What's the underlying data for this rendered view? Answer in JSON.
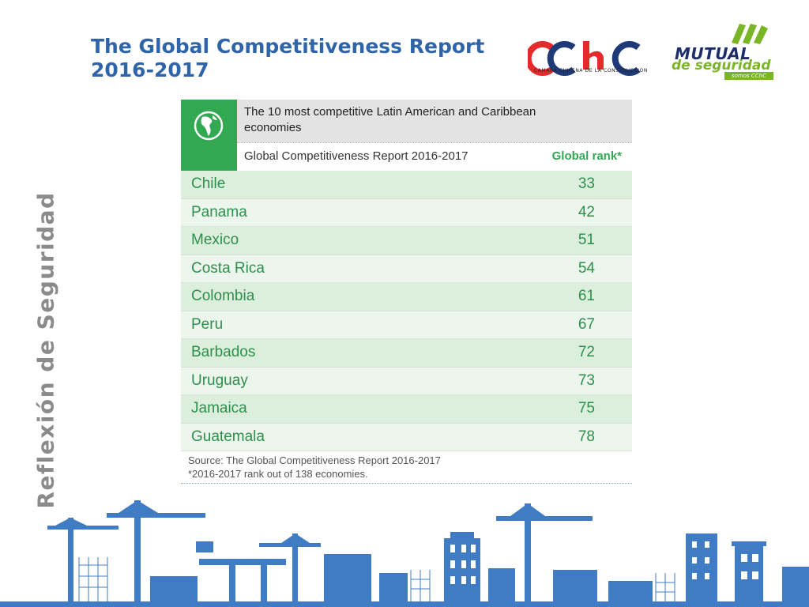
{
  "slide": {
    "title_line1": "The Global Competitiveness Report",
    "title_line2": "2016-2017",
    "side_label": "Reflexión de Seguridad"
  },
  "logos": {
    "cchc_text": "CCHC",
    "cchc_subtitle": "CAMARA CHILENA DE LA CONSTRUCCION",
    "mutual_name": "MUTUAL",
    "mutual_sub": "de seguridad",
    "mutual_tag": "somos CChC"
  },
  "table": {
    "heading": "The 10 most competitive Latin American and Caribbean economies",
    "subheading": "Global Competitiveness Report 2016-2017",
    "rank_header": "Global rank*",
    "icon": "globe-americas-icon",
    "rows": [
      {
        "country": "Chile",
        "rank": "33"
      },
      {
        "country": "Panama",
        "rank": "42"
      },
      {
        "country": "Mexico",
        "rank": "51"
      },
      {
        "country": "Costa Rica",
        "rank": "54"
      },
      {
        "country": "Colombia",
        "rank": "61"
      },
      {
        "country": "Peru",
        "rank": "67"
      },
      {
        "country": "Barbados",
        "rank": "72"
      },
      {
        "country": "Uruguay",
        "rank": "73"
      },
      {
        "country": "Jamaica",
        "rank": "75"
      },
      {
        "country": "Guatemala",
        "rank": "78"
      }
    ],
    "source_line1": "Source: The Global Competitiveness Report 2016-2017",
    "source_line2": "*2016-2017 rank out of 138 economies."
  },
  "colors": {
    "title_blue": "#2f64a8",
    "green": "#33a852",
    "row_green_dark": "#dcefdc",
    "row_green_light": "#edf6ed",
    "skyline_blue": "#3f7cc4"
  }
}
